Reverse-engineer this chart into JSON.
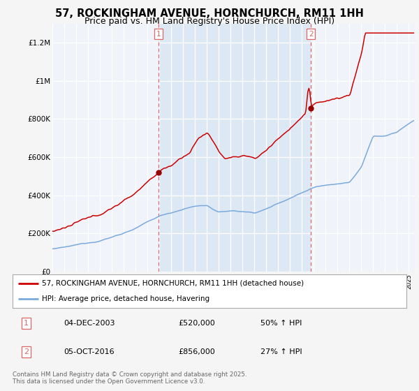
{
  "title_line1": "57, ROCKINGHAM AVENUE, HORNCHURCH, RM11 1HH",
  "title_line2": "Price paid vs. HM Land Registry's House Price Index (HPI)",
  "ylabel_ticks": [
    "£0",
    "£200K",
    "£400K",
    "£600K",
    "£800K",
    "£1M",
    "£1.2M"
  ],
  "ytick_values": [
    0,
    200000,
    400000,
    600000,
    800000,
    1000000,
    1200000
  ],
  "ylim": [
    0,
    1300000
  ],
  "sale1_date": "04-DEC-2003",
  "sale1_price": 520000,
  "sale1_label": "50% ↑ HPI",
  "sale1_x": 2003.92,
  "sale2_date": "05-OCT-2016",
  "sale2_price": 856000,
  "sale2_label": "27% ↑ HPI",
  "sale2_x": 2016.75,
  "legend_line1": "57, ROCKINGHAM AVENUE, HORNCHURCH, RM11 1HH (detached house)",
  "legend_line2": "HPI: Average price, detached house, Havering",
  "footer": "Contains HM Land Registry data © Crown copyright and database right 2025.\nThis data is licensed under the Open Government Licence v3.0.",
  "red_color": "#cc0000",
  "blue_color": "#7aaadd",
  "red_dot_color": "#990000",
  "vline_color": "#dd6666",
  "bg_between_sales": "#dde8f5",
  "plot_bg_color": "#f0f4fa",
  "grid_color": "#ffffff",
  "fig_bg": "#f5f5f5",
  "title_fontsize": 10.5,
  "subtitle_fontsize": 9
}
